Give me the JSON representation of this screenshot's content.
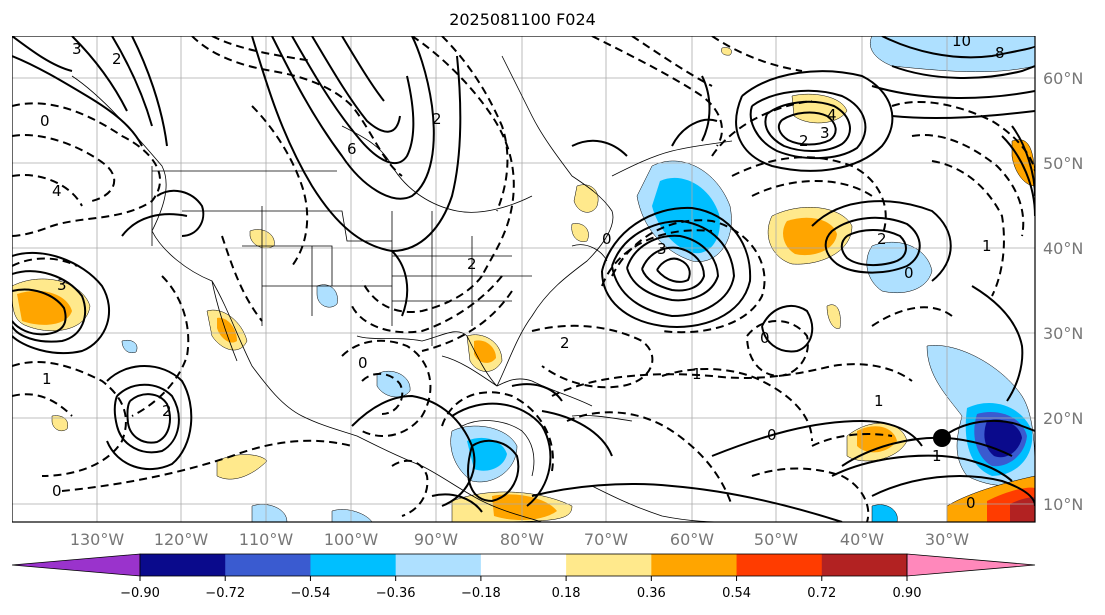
{
  "title": "2025081100 F024",
  "lon_labels": [
    "130°W",
    "120°W",
    "110°W",
    "100°W",
    "90°W",
    "80°W",
    "70°W",
    "60°W",
    "50°W",
    "40°W",
    "30°W"
  ],
  "lat_labels": [
    "60°N",
    "50°N",
    "40°N",
    "30°N",
    "20°N",
    "10°N"
  ],
  "colorbar": {
    "colors": [
      "#9a33cc",
      "#0a0a8c",
      "#3a5bd0",
      "#00bfff",
      "#aee0ff",
      "#ffffff",
      "#ffe98c",
      "#ffa500",
      "#ff3c00",
      "#b22222",
      "#ff88bb"
    ],
    "tick_labels": [
      "−0.90",
      "−0.72",
      "−0.54",
      "−0.36",
      "−0.18",
      "0.18",
      "0.36",
      "0.54",
      "0.72",
      "0.90"
    ]
  },
  "contour_labels": [
    "3",
    "2",
    "0",
    "4",
    "6",
    "2",
    "8",
    "10",
    "3",
    "2",
    "1",
    "0",
    "3",
    "2",
    "2",
    "0",
    "1",
    "2",
    "0",
    "1",
    "0",
    "0",
    "1",
    "0",
    "2",
    "1",
    "3",
    "4",
    "0"
  ],
  "marker_color": "#000000"
}
